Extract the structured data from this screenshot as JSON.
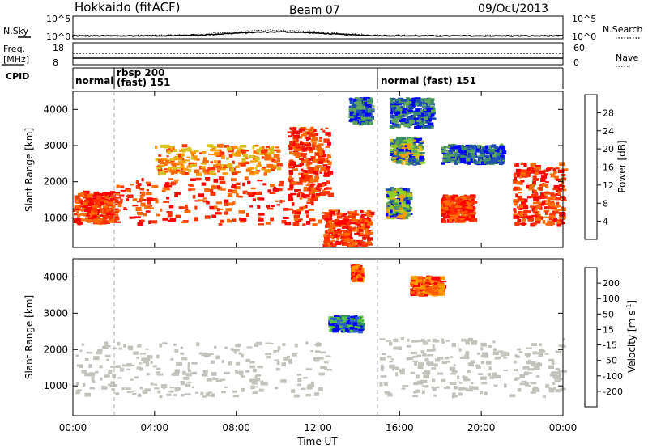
{
  "header": {
    "station": "Hokkaido (fitACF)",
    "beam": "Beam 07",
    "date": "09/Oct/2013"
  },
  "aux_panels": {
    "nsky_label": "N.Sky",
    "nsky_ticks": [
      "10^5",
      "10^0"
    ],
    "nsearch_label": "N.Search",
    "nsearch_ticks": [
      "10^5",
      "10^0"
    ],
    "freq_label_1": "Freq.",
    "freq_label_2": "[MHz]",
    "freq_ticks": [
      "18",
      "8"
    ],
    "nave_label": "Nave",
    "nave_ticks": [
      "60",
      "0"
    ],
    "cpid_label": "CPID",
    "cpid_segments": [
      {
        "label": "normal",
        "label2": ""
      },
      {
        "label": "rbsp 200",
        "label2": "(fast) 151"
      },
      {
        "label": "normal (fast) 151",
        "label2": ""
      }
    ]
  },
  "x_axis": {
    "label": "Time UT",
    "ticks": [
      "00:00",
      "04:00",
      "08:00",
      "12:00",
      "16:00",
      "20:00",
      "00:00"
    ]
  },
  "power_panel": {
    "ylabel": "Slant Range [km]",
    "yticks": [
      "1000",
      "2000",
      "3000",
      "4000"
    ],
    "colorbar_label": "Power [dB]",
    "colorbar_ticks": [
      "4",
      "8",
      "12",
      "16",
      "20",
      "24",
      "28"
    ],
    "colors": [
      "#0000ff",
      "#1f4fb0",
      "#3d8f66",
      "#5fa55a",
      "#8ccf2d",
      "#d6c21a",
      "#ff9900",
      "#ff6a00",
      "#ff3300",
      "#ff0000"
    ]
  },
  "velocity_panel": {
    "ylabel": "Slant Range [km]",
    "yticks": [
      "1000",
      "2000",
      "3000",
      "4000"
    ],
    "colorbar_label": "Velocity [m s",
    "colorbar_label_sup": "-1",
    "colorbar_label_end": "]",
    "colorbar_ticks": [
      "200",
      "100",
      "50",
      "15",
      "-15",
      "-50",
      "-100",
      "-200"
    ],
    "colors": [
      "#0000ff",
      "#2c5dcc",
      "#2b8f55",
      "#54c53a",
      "#c3c3bc",
      "#ffd24d",
      "#ff9900",
      "#ff5a00",
      "#ff0000"
    ]
  },
  "chart_data": {
    "type": "heatmap",
    "x_range_hours": [
      0,
      24
    ],
    "y_range_km": [
      180,
      4500
    ],
    "power_regions": [
      {
        "x": [
          0,
          2
        ],
        "y": [
          850,
          1700
        ],
        "level": "strong"
      },
      {
        "x": [
          2,
          12
        ],
        "y": [
          800,
          2100
        ],
        "level": "strong"
      },
      {
        "x": [
          4,
          10
        ],
        "y": [
          2200,
          3000
        ],
        "level": "moderate"
      },
      {
        "x": [
          10.5,
          12.5
        ],
        "y": [
          1600,
          3500
        ],
        "level": "strong"
      },
      {
        "x": [
          12.2,
          14.5
        ],
        "y": [
          200,
          1200
        ],
        "level": "strong"
      },
      {
        "x": [
          13.5,
          14.5
        ],
        "y": [
          3600,
          4300
        ],
        "level": "weak"
      },
      {
        "x": [
          15.5,
          17.5
        ],
        "y": [
          3500,
          4300
        ],
        "level": "weak"
      },
      {
        "x": [
          15.5,
          17
        ],
        "y": [
          2500,
          3200
        ],
        "level": "mixed"
      },
      {
        "x": [
          15.3,
          16.4
        ],
        "y": [
          1000,
          1800
        ],
        "level": "mixed"
      },
      {
        "x": [
          18,
          19.5
        ],
        "y": [
          900,
          1600
        ],
        "level": "strong"
      },
      {
        "x": [
          21.5,
          24
        ],
        "y": [
          800,
          2500
        ],
        "level": "strong"
      },
      {
        "x": [
          18,
          21
        ],
        "y": [
          2500,
          3000
        ],
        "level": "weak"
      }
    ],
    "velocity_regions": [
      {
        "x": [
          0,
          12.5
        ],
        "y": [
          700,
          2200
        ],
        "class": "near-zero"
      },
      {
        "x": [
          12.5,
          14
        ],
        "y": [
          2500,
          2900
        ],
        "class": "positive"
      },
      {
        "x": [
          13.6,
          14
        ],
        "y": [
          3900,
          4300
        ],
        "class": "negative"
      },
      {
        "x": [
          15,
          24
        ],
        "y": [
          700,
          2300
        ],
        "class": "near-zero"
      },
      {
        "x": [
          16.5,
          18
        ],
        "y": [
          3500,
          4000
        ],
        "class": "negative"
      }
    ]
  }
}
